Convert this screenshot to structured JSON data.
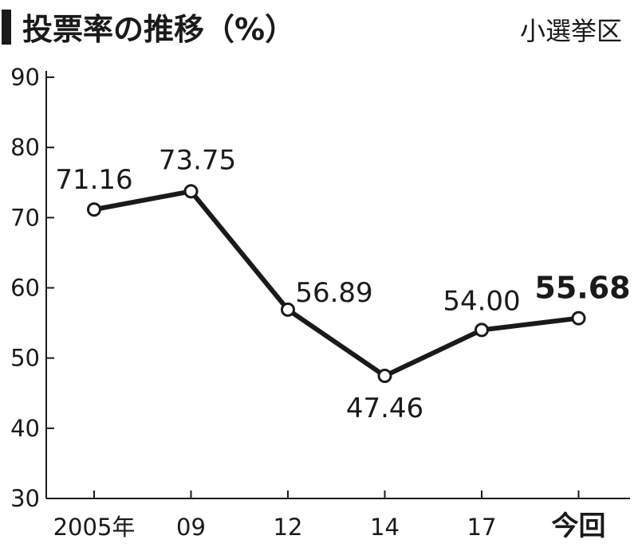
{
  "header": {
    "title": "投票率の推移（%）",
    "subtitle": "小選挙区"
  },
  "chart_data": {
    "type": "line",
    "title": "投票率の推移（%）",
    "subtitle": "小選挙区",
    "categories": [
      "2005年",
      "09",
      "12",
      "14",
      "17",
      "今回"
    ],
    "series": [
      {
        "values": [
          71.16,
          73.75,
          56.89,
          47.46,
          54.0,
          55.68
        ],
        "labels": [
          "71.16",
          "73.75",
          "56.89",
          "47.46",
          "54.00",
          "55.68"
        ],
        "color": "#1a1a1a"
      }
    ],
    "ylim": [
      30,
      90
    ],
    "yticks": [
      "30",
      "40",
      "50",
      "60",
      "70",
      "80",
      "90"
    ],
    "grid": false,
    "legend": "none",
    "highlight_index": 5
  }
}
